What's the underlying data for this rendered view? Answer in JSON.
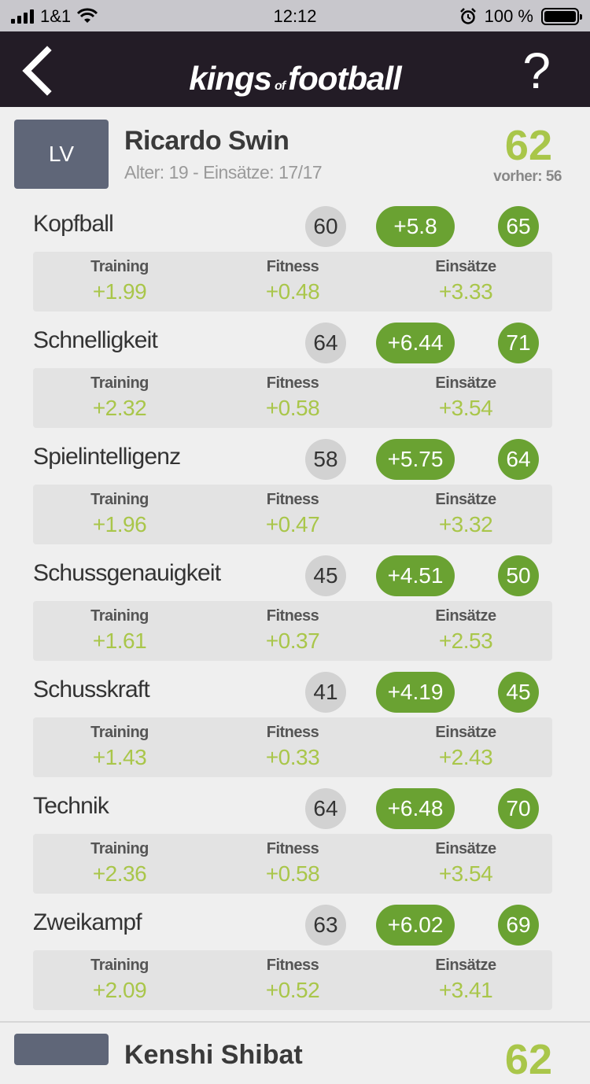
{
  "status": {
    "carrier": "1&1",
    "time": "12:12",
    "battery": "100 %"
  },
  "header": {
    "logo_kings": "kings",
    "logo_of": "of",
    "logo_football": "football",
    "help": "?"
  },
  "player": {
    "position": "LV",
    "name": "Ricardo Swin",
    "meta": "Alter: 19 - Einsätze: 17/17",
    "rating": "62",
    "previous": "vorher: 56"
  },
  "labels": {
    "training": "Training",
    "fitness": "Fitness",
    "einsaetze": "Einsätze"
  },
  "skills": [
    {
      "name": "Kopfball",
      "old": "60",
      "delta": "+5.8",
      "new": "65",
      "training": "+1.99",
      "fitness": "+0.48",
      "einsaetze": "+3.33"
    },
    {
      "name": "Schnelligkeit",
      "old": "64",
      "delta": "+6.44",
      "new": "71",
      "training": "+2.32",
      "fitness": "+0.58",
      "einsaetze": "+3.54"
    },
    {
      "name": "Spielintelligenz",
      "old": "58",
      "delta": "+5.75",
      "new": "64",
      "training": "+1.96",
      "fitness": "+0.47",
      "einsaetze": "+3.32"
    },
    {
      "name": "Schussgenauigkeit",
      "old": "45",
      "delta": "+4.51",
      "new": "50",
      "training": "+1.61",
      "fitness": "+0.37",
      "einsaetze": "+2.53"
    },
    {
      "name": "Schusskraft",
      "old": "41",
      "delta": "+4.19",
      "new": "45",
      "training": "+1.43",
      "fitness": "+0.33",
      "einsaetze": "+2.43"
    },
    {
      "name": "Technik",
      "old": "64",
      "delta": "+6.48",
      "new": "70",
      "training": "+2.36",
      "fitness": "+0.58",
      "einsaetze": "+3.54"
    },
    {
      "name": "Zweikampf",
      "old": "63",
      "delta": "+6.02",
      "new": "69",
      "training": "+2.09",
      "fitness": "+0.52",
      "einsaetze": "+3.41"
    }
  ],
  "next_player": {
    "name": "Kenshi Shibat",
    "rating": "62"
  },
  "colors": {
    "header_bg": "#231c26",
    "accent_green": "#6aa232",
    "light_green": "#a9c64a",
    "avatar_bg": "#5f6678"
  }
}
